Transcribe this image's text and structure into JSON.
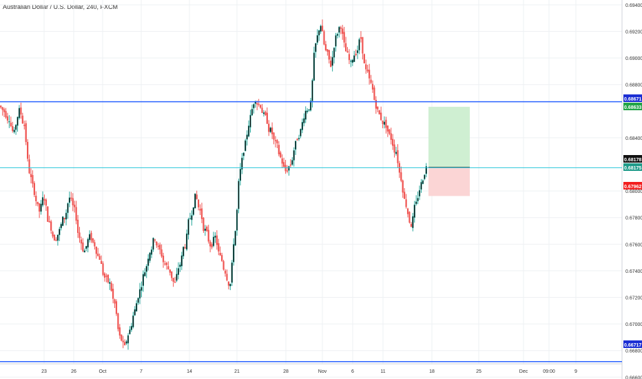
{
  "title": "Australian Dollar / U.S. Dollar, 240, FXCM",
  "colors": {
    "up": "#26a69a",
    "up_body": "#000000",
    "down": "#ef5350",
    "grid": "#eef0f3",
    "hline": "#2962ff",
    "cyan_line": "#26c6da",
    "target_zone": "#cfefd2",
    "stop_zone": "#fbd5d5",
    "badge_blue": "#1c2fd4",
    "badge_green": "#22a447",
    "badge_red": "#f21f1f",
    "badge_black": "#111111",
    "badge_teal": "#1f9b8a"
  },
  "chart_data": {
    "type": "candlestick",
    "ylim": [
      0.66586,
      0.69436
    ],
    "y_ticks": [
      "0.69400",
      "0.69200",
      "0.69000",
      "0.68800",
      "0.68400",
      "0.68000",
      "0.67800",
      "0.67600",
      "0.67400",
      "0.67200",
      "0.67000",
      "0.66800",
      "0.66600"
    ],
    "x_ticks": [
      "23",
      "26",
      "Oct",
      "7",
      "14",
      "21",
      "28",
      "Nov",
      "6",
      "11",
      "18",
      "25",
      "Dec",
      "09:00",
      "9"
    ],
    "horizontal_lines": [
      0.68671,
      0.66717
    ],
    "price_labels": [
      {
        "text": "0.68671",
        "kind": "blue"
      },
      {
        "text": "0.68633",
        "kind": "green"
      },
      {
        "text": "0.68178",
        "kind": "black"
      },
      {
        "text": "0.68175",
        "kind": "teal"
      },
      {
        "text": "0.67962",
        "kind": "red"
      },
      {
        "text": "0.66717",
        "kind": "blue"
      }
    ],
    "position": {
      "entry": 0.68178,
      "target": 0.68633,
      "stop": 0.67962
    },
    "last_price": 0.68175,
    "path_closes": [
      0.686,
      0.6855,
      0.6843,
      0.686,
      0.685,
      0.6815,
      0.68,
      0.6785,
      0.6795,
      0.6775,
      0.6765,
      0.677,
      0.678,
      0.6795,
      0.6785,
      0.6765,
      0.6755,
      0.6765,
      0.676,
      0.675,
      0.6735,
      0.673,
      0.6715,
      0.669,
      0.6682,
      0.6695,
      0.671,
      0.6725,
      0.674,
      0.6755,
      0.6765,
      0.6755,
      0.6745,
      0.674,
      0.673,
      0.6745,
      0.676,
      0.678,
      0.6795,
      0.6785,
      0.677,
      0.676,
      0.6765,
      0.675,
      0.674,
      0.673,
      0.677,
      0.6815,
      0.6835,
      0.6855,
      0.687,
      0.6865,
      0.6855,
      0.6845,
      0.6835,
      0.6825,
      0.6815,
      0.682,
      0.6835,
      0.6845,
      0.686,
      0.6865,
      0.691,
      0.6925,
      0.6905,
      0.6895,
      0.6915,
      0.6925,
      0.6905,
      0.6895,
      0.6905,
      0.6915,
      0.689,
      0.688,
      0.6865,
      0.6855,
      0.685,
      0.684,
      0.683,
      0.681,
      0.679,
      0.6775,
      0.679,
      0.6805,
      0.68175
    ]
  }
}
